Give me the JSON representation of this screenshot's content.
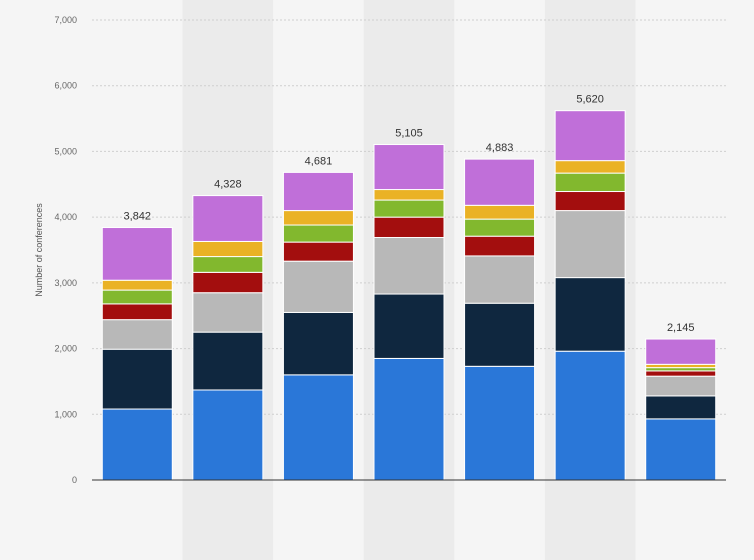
{
  "chart_data": {
    "type": "bar",
    "stacked": true,
    "title": "",
    "xlabel": "",
    "ylabel": "Number of conferences",
    "ylim": [
      0,
      7000
    ],
    "yticks": [
      0,
      1000,
      2000,
      3000,
      4000,
      5000,
      6000,
      7000
    ],
    "ytick_labels": [
      "0",
      "1,000",
      "2,000",
      "3,000",
      "4,000",
      "5,000",
      "6,000",
      "7,000"
    ],
    "grid": true,
    "categories": [
      "",
      "",
      "",
      "",
      "",
      "",
      ""
    ],
    "totals": [
      3842,
      4328,
      4681,
      5105,
      4883,
      5620,
      2145
    ],
    "total_labels": [
      "3,842",
      "4,328",
      "4,681",
      "5,105",
      "4,883",
      "5,620",
      "2,145"
    ],
    "series": [
      {
        "color": "#2a77d8",
        "values": [
          1080,
          1370,
          1600,
          1850,
          1730,
          1960,
          930
        ]
      },
      {
        "color": "#0f273f",
        "values": [
          910,
          880,
          950,
          980,
          960,
          1120,
          350
        ]
      },
      {
        "color": "#b8b8b8",
        "values": [
          450,
          600,
          780,
          860,
          720,
          1020,
          300
        ]
      },
      {
        "color": "#a30e0e",
        "values": [
          240,
          310,
          290,
          310,
          300,
          290,
          80
        ]
      },
      {
        "color": "#82b82e",
        "values": [
          210,
          240,
          260,
          260,
          260,
          280,
          50
        ]
      },
      {
        "color": "#eab225",
        "values": [
          150,
          230,
          220,
          160,
          210,
          190,
          50
        ]
      },
      {
        "color": "#c06fd9",
        "values": [
          802,
          698,
          581,
          685,
          703,
          760,
          385
        ]
      }
    ],
    "colors": {
      "band": "#ebebeb",
      "background": "#f5f5f5",
      "grid": "#cfcfcf",
      "axis": "#333333"
    }
  }
}
